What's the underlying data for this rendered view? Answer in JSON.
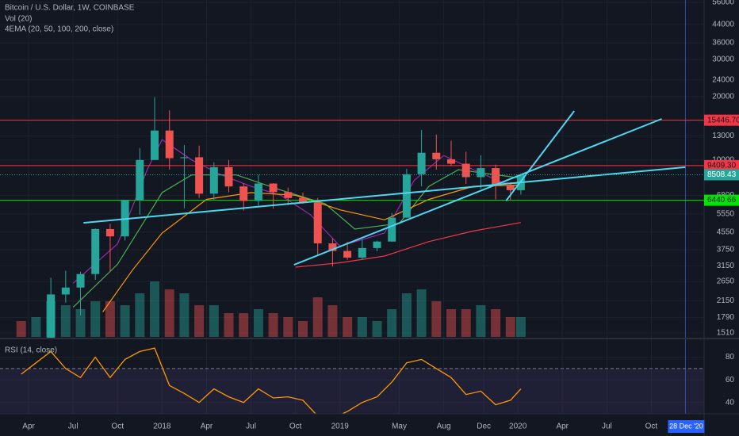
{
  "chart_data": [
    {
      "type": "candlestick",
      "title": "Bitcoin / U.S. Dollar, 1W, COINBASE",
      "volume_label": "Vol (20)",
      "ema_label": "4EMA (20, 50, 100, 200, close)",
      "log": true,
      "ylim": [
        1510,
        56000
      ],
      "yticks": [
        56000,
        44000,
        36000,
        30000,
        24000,
        20000,
        13000,
        10000,
        6800,
        5550,
        4550,
        3750,
        3150,
        2650,
        2150,
        1790,
        1510
      ],
      "xlim": [
        1.07,
        48.56
      ],
      "xticks": [
        {
          "value": 3,
          "label": "Apr"
        },
        {
          "value": 6,
          "label": "Jul"
        },
        {
          "value": 9,
          "label": "Oct"
        },
        {
          "value": 12,
          "label": "2018"
        },
        {
          "value": 15,
          "label": "Apr"
        },
        {
          "value": 18,
          "label": "Jul"
        },
        {
          "value": 21,
          "label": "Oct"
        },
        {
          "value": 24,
          "label": "2019"
        },
        {
          "value": 28,
          "label": "May"
        },
        {
          "value": 31,
          "label": "Aug"
        },
        {
          "value": 33.7,
          "label": "Dec"
        },
        {
          "value": 36,
          "label": "2020"
        },
        {
          "value": 39,
          "label": "Apr"
        },
        {
          "value": 42,
          "label": "Jul"
        },
        {
          "value": 45,
          "label": "Oct"
        }
      ],
      "cursor": {
        "value": 47.3,
        "label": "28 Dec '20"
      },
      "up_color": "#26a69a",
      "down_color": "#ef5350",
      "x": [
        2.5,
        3.5,
        4.5,
        5.5,
        6.5,
        7.5,
        8.5,
        9.5,
        10.5,
        11.5,
        12.5,
        13.5,
        14.5,
        15.5,
        16.5,
        17.5,
        18.5,
        19.5,
        20.5,
        21.5,
        22.5,
        23.5,
        24.5,
        25.5,
        26.5,
        27.5,
        28.5,
        29.5,
        30.5,
        31.5,
        32.5,
        33.5,
        34.5,
        35.5,
        36.2
      ],
      "open": [
        1190,
        1080,
        1350,
        2300,
        2480,
        2875,
        4700,
        4340,
        6450,
        10000,
        13800,
        10200,
        10300,
        6920,
        9240,
        7490,
        6390,
        7730,
        7040,
        6600,
        6300,
        4020,
        3700,
        3440,
        3820,
        4100,
        5320,
        8560,
        10820,
        10080,
        9600,
        8290,
        9150,
        7550,
        7190
      ],
      "high": [
        1350,
        1350,
        2760,
        2980,
        2950,
        4740,
        4980,
        6470,
        11400,
        19890,
        17200,
        11780,
        11700,
        9750,
        10000,
        7760,
        8500,
        7760,
        7400,
        7000,
        6600,
        4250,
        4090,
        4200,
        4140,
        5600,
        9090,
        13880,
        13200,
        12330,
        10950,
        10540,
        9510,
        7850,
        8600
      ],
      "low": [
        890,
        1060,
        1350,
        2100,
        1830,
        2700,
        2970,
        4150,
        5500,
        10000,
        9000,
        5900,
        6600,
        6430,
        7030,
        5750,
        6070,
        5880,
        6100,
        6200,
        3550,
        3120,
        3360,
        3370,
        3690,
        4090,
        5320,
        7500,
        9000,
        9350,
        7700,
        7300,
        6500,
        6430,
        6850
      ],
      "close": [
        1080,
        1350,
        2300,
        2480,
        2875,
        4700,
        4340,
        6450,
        10000,
        13800,
        10200,
        10300,
        6920,
        9240,
        7490,
        6390,
        7730,
        7040,
        6600,
        6300,
        4020,
        3700,
        3440,
        3820,
        4100,
        5320,
        8560,
        10820,
        10080,
        9600,
        8290,
        9150,
        7550,
        7190,
        8508.43
      ],
      "volume": [
        20,
        25,
        45,
        40,
        35,
        45,
        45,
        40,
        55,
        70,
        60,
        55,
        40,
        40,
        30,
        30,
        35,
        30,
        25,
        20,
        50,
        40,
        25,
        25,
        20,
        35,
        55,
        60,
        45,
        35,
        35,
        40,
        35,
        25,
        25
      ],
      "volume_lim": [
        0,
        100
      ],
      "ema": [
        {
          "color": "#9c27b0",
          "x": [
            6,
            9,
            11,
            12,
            14,
            16,
            18,
            20,
            22,
            24,
            27,
            29,
            31,
            33,
            35,
            36.2
          ],
          "values": [
            2600,
            4000,
            9000,
            12500,
            10000,
            8500,
            7500,
            6800,
            5500,
            3900,
            4500,
            8000,
            10500,
            9000,
            7800,
            7700
          ]
        },
        {
          "color": "#4caf50",
          "x": [
            6,
            9,
            12,
            14,
            17,
            20,
            23,
            25,
            28,
            30,
            32,
            34,
            36.2
          ],
          "values": [
            2000,
            3200,
            7000,
            8500,
            8500,
            7200,
            6200,
            4700,
            5000,
            7500,
            9000,
            8600,
            8200
          ]
        },
        {
          "color": "#ff9800",
          "x": [
            8,
            10,
            12,
            15,
            18,
            21,
            24,
            27,
            30,
            33,
            36.2
          ],
          "values": [
            1900,
            3000,
            4500,
            6500,
            7000,
            6800,
            5800,
            5200,
            6500,
            7500,
            7600
          ]
        },
        {
          "color": "#f23645",
          "x": [
            21,
            24,
            27,
            30,
            33,
            36.2
          ],
          "values": [
            3100,
            3250,
            3500,
            4100,
            4600,
            5050
          ]
        }
      ],
      "levels": [
        {
          "value": 15446.7,
          "label": "15446.70",
          "color": "#f23645"
        },
        {
          "value": 9409.3,
          "label": "9409.30",
          "color": "#f23645"
        },
        {
          "value": 6440.66,
          "color": "#00e600"
        }
      ],
      "last_price": {
        "value": 8508.43,
        "color": "#26a69a"
      },
      "trend_lines": [
        {
          "color": "#4dd8f0",
          "x": [
            6.7,
            47.3
          ],
          "values": [
            5030,
            9240
          ]
        },
        {
          "color": "#4dd8f0",
          "x": [
            20.9,
            45.7
          ],
          "values": [
            3180,
            15670
          ]
        },
        {
          "color": "#4dd8f0",
          "x": [
            35.2,
            39.8
          ],
          "values": [
            6400,
            17090
          ]
        }
      ]
    },
    {
      "type": "line",
      "title": "RSI (14, close)",
      "color": "#ff9800",
      "x": [
        2.5,
        3.5,
        4.5,
        5.5,
        6.5,
        7.5,
        8.5,
        9.5,
        10.5,
        11.5,
        12.5,
        13.5,
        14.5,
        15.5,
        16.5,
        17.5,
        18.5,
        19.5,
        20.5,
        21.5,
        22.5,
        23.5,
        24.5,
        25.5,
        26.5,
        27.5,
        28.5,
        29.5,
        30.5,
        31.5,
        32.5,
        33.5,
        34.5,
        35.5,
        36.2
      ],
      "values": [
        65,
        75,
        85,
        70,
        62,
        80,
        62,
        78,
        85,
        88,
        55,
        48,
        40,
        52,
        45,
        40,
        52,
        44,
        45,
        42,
        28,
        26,
        32,
        40,
        45,
        58,
        75,
        78,
        70,
        62,
        47,
        50,
        38,
        42,
        52
      ],
      "ylim": [
        30,
        93
      ],
      "yticks": [
        80,
        60,
        40
      ],
      "levels": [
        70,
        30
      ]
    }
  ]
}
